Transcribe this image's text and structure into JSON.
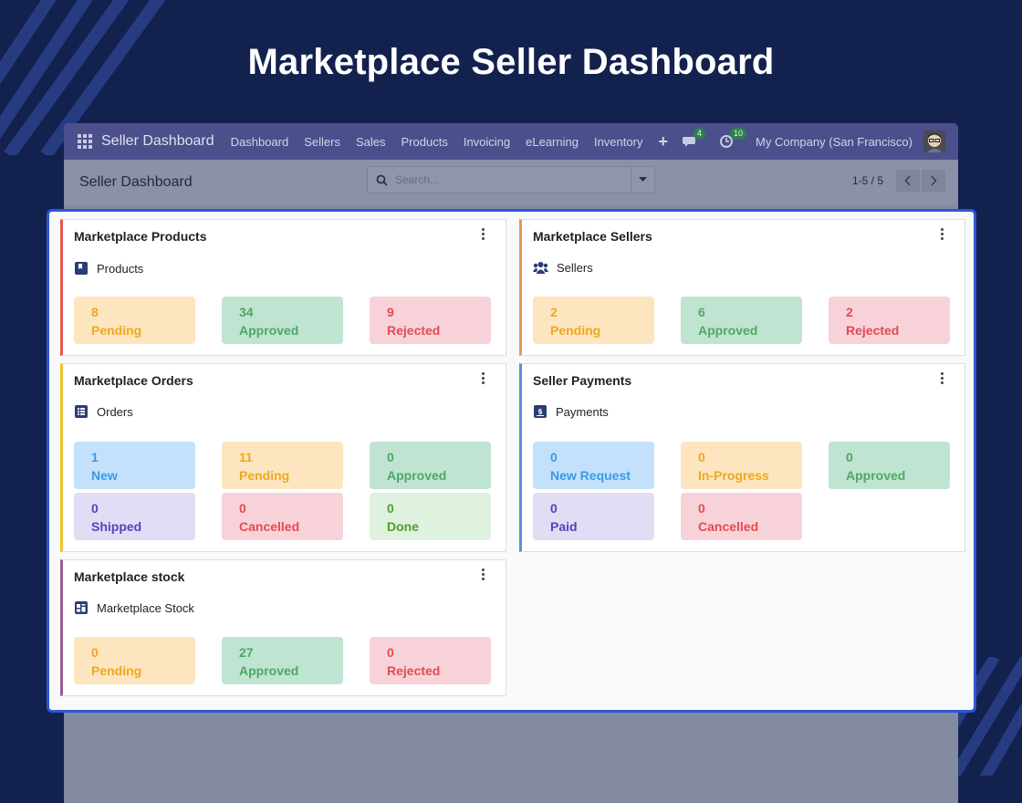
{
  "page_title": "Marketplace Seller Dashboard",
  "navbar": {
    "brand": "Seller Dashboard",
    "menu": [
      "Dashboard",
      "Sellers",
      "Sales",
      "Products",
      "Invoicing",
      "eLearning",
      "Inventory"
    ],
    "plus": "+",
    "messages_count": "4",
    "activities_count": "10",
    "company": "My Company (San Francisco)"
  },
  "control_panel": {
    "title": "Seller Dashboard",
    "search_placeholder": "Search...",
    "pager": "1-5 / 5"
  },
  "cards": {
    "products": {
      "title": "Marketplace Products",
      "subtitle": "Products",
      "accent": "#e0584d",
      "tiles": [
        {
          "value": "8",
          "label": "Pending"
        },
        {
          "value": "34",
          "label": "Approved"
        },
        {
          "value": "9",
          "label": "Rejected"
        }
      ]
    },
    "sellers": {
      "title": "Marketplace Sellers",
      "subtitle": "Sellers",
      "accent": "#e29a4f",
      "tiles": [
        {
          "value": "2",
          "label": "Pending"
        },
        {
          "value": "6",
          "label": "Approved"
        },
        {
          "value": "2",
          "label": "Rejected"
        }
      ]
    },
    "orders": {
      "title": "Marketplace Orders",
      "subtitle": "Orders",
      "accent": "#f2c230",
      "tiles": [
        {
          "value": "1",
          "label": "New"
        },
        {
          "value": "11",
          "label": "Pending"
        },
        {
          "value": "0",
          "label": "Approved"
        },
        {
          "value": "0",
          "label": "Shipped"
        },
        {
          "value": "0",
          "label": "Cancelled"
        },
        {
          "value": "0",
          "label": "Done"
        }
      ]
    },
    "payments": {
      "title": "Seller Payments",
      "subtitle": "Payments",
      "accent": "#5b8fd6",
      "tiles": [
        {
          "value": "0",
          "label": "New Request"
        },
        {
          "value": "0",
          "label": "In-Progress"
        },
        {
          "value": "0",
          "label": "Approved"
        },
        {
          "value": "0",
          "label": "Paid"
        },
        {
          "value": "0",
          "label": "Cancelled"
        }
      ]
    },
    "stock": {
      "title": "Marketplace stock",
      "subtitle": "Marketplace Stock",
      "accent": "#9b5c8f",
      "tiles": [
        {
          "value": "0",
          "label": "Pending"
        },
        {
          "value": "27",
          "label": "Approved"
        },
        {
          "value": "0",
          "label": "Rejected"
        }
      ]
    }
  }
}
